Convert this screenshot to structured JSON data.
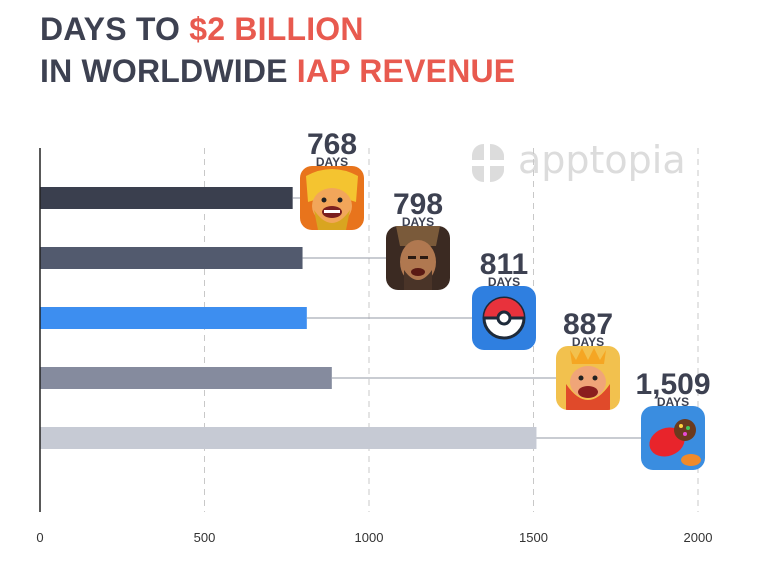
{
  "title": {
    "line1_prefix": "DAYS TO ",
    "line1_accent": "$2 BILLION",
    "line2_prefix": "IN WORLDWIDE ",
    "line2_accent": "IAP REVENUE"
  },
  "watermark": {
    "text": "apptopia"
  },
  "colors": {
    "title": "#3d4151",
    "accent": "#e85a4f",
    "axis": "#222222",
    "grid": "#c8c8c8",
    "label": "#3d4151"
  },
  "chart_data": {
    "type": "bar",
    "orientation": "horizontal",
    "title": "DAYS TO $2 BILLION IN WORLDWIDE IAP REVENUE",
    "xlabel": "",
    "ylabel": "",
    "xlim": [
      0,
      2000
    ],
    "xticks": [
      0,
      500,
      1000,
      1500,
      2000
    ],
    "grid": "vertical dashed",
    "unit_label": "DAYS",
    "bars": [
      {
        "value": 768,
        "label": "768",
        "color": "#3a3f4e",
        "icon": "clash-of-clans-app-icon"
      },
      {
        "value": 798,
        "label": "798",
        "color": "#525a6e",
        "icon": "game-of-war-app-icon"
      },
      {
        "value": 811,
        "label": "811",
        "color": "#3d8ef0",
        "icon": "pokemon-go-app-icon"
      },
      {
        "value": 887,
        "label": "887",
        "color": "#858b9e",
        "icon": "clash-royale-app-icon"
      },
      {
        "value": 1509,
        "label": "1,509",
        "color": "#c6cad4",
        "icon": "candy-crush-saga-app-icon"
      }
    ]
  }
}
